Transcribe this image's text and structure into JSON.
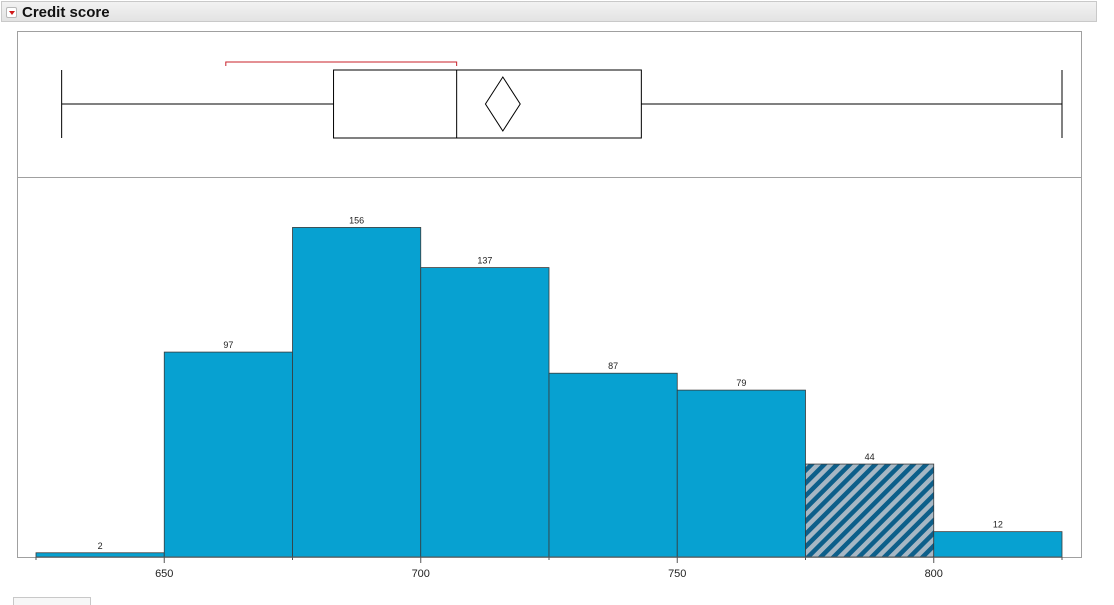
{
  "report": {
    "title": "Credit score"
  },
  "chart_data": {
    "type": "bar",
    "title": "Credit score",
    "bin_width": 25,
    "bins": [
      {
        "start": 625,
        "end": 650,
        "count": 2
      },
      {
        "start": 650,
        "end": 675,
        "count": 97
      },
      {
        "start": 675,
        "end": 700,
        "count": 156
      },
      {
        "start": 700,
        "end": 725,
        "count": 137
      },
      {
        "start": 725,
        "end": 750,
        "count": 87
      },
      {
        "start": 750,
        "end": 775,
        "count": 79
      },
      {
        "start": 775,
        "end": 800,
        "count": 44,
        "selected": true
      },
      {
        "start": 800,
        "end": 825,
        "count": 12
      }
    ],
    "x_ticks": [
      650,
      700,
      750,
      800
    ],
    "xlim": [
      625,
      825
    ],
    "ylim": [
      0,
      160
    ],
    "box_plot": {
      "whisker_min": 630,
      "q1": 683,
      "median": 707,
      "q3": 743,
      "whisker_max": 825,
      "mean": 716,
      "mean_ci": [
        713,
        719
      ],
      "shortest_half": [
        662,
        707
      ]
    },
    "colors": {
      "bar": "#07a1d1",
      "selected_hatch": "#9fb4c4",
      "bracket": "#c8202a"
    },
    "grid": false
  }
}
